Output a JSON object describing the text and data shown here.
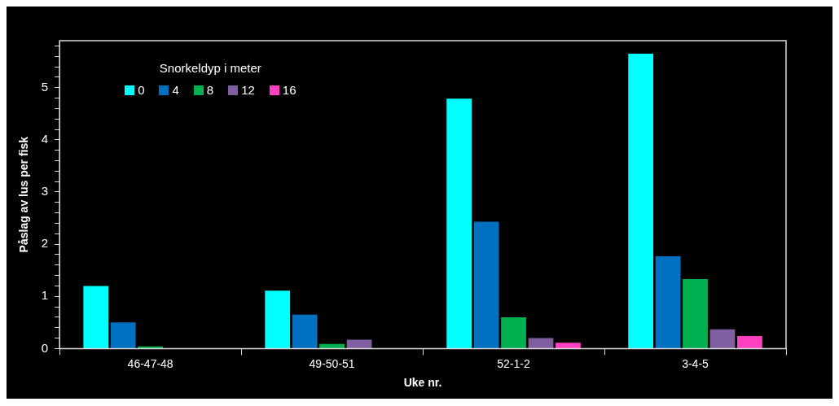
{
  "chart_data": {
    "type": "bar",
    "xlabel": "Uke nr.",
    "ylabel": "Påslag av lus per fisk",
    "legend_title": "Snorkeldyp i meter",
    "legend": "top left",
    "categories": [
      "46-47-48",
      "49-50-51",
      "52-1-2",
      "3-4-5"
    ],
    "series": [
      {
        "name": "0",
        "color": "#00ffff",
        "values": [
          1.2,
          1.11,
          4.79,
          5.65
        ]
      },
      {
        "name": "4",
        "color": "#0070c0",
        "values": [
          0.5,
          0.65,
          2.43,
          1.77
        ]
      },
      {
        "name": "8",
        "color": "#00b050",
        "values": [
          0.04,
          0.09,
          0.6,
          1.33
        ]
      },
      {
        "name": "12",
        "color": "#7f5fa0",
        "values": [
          0,
          0.17,
          0.2,
          0.37
        ]
      },
      {
        "name": "16",
        "color": "#ff40c0",
        "values": [
          0,
          0,
          0.11,
          0.24
        ]
      }
    ],
    "ylim": [
      0,
      5.9
    ],
    "yticks": [
      0,
      {
        "value": 0.2,
        "label": null
      },
      {
        "value": 0.4,
        "label": null
      },
      {
        "value": 0.6,
        "label": null
      },
      {
        "value": 0.8,
        "label": null
      },
      1,
      {
        "value": 1.2,
        "label": null
      },
      {
        "value": 1.4,
        "label": null
      },
      {
        "value": 1.6,
        "label": null
      },
      {
        "value": 1.8,
        "label": null
      },
      2,
      {
        "value": 2.2,
        "label": null
      },
      {
        "value": 2.4,
        "label": null
      },
      {
        "value": 2.6,
        "label": null
      },
      {
        "value": 2.8,
        "label": null
      },
      3,
      {
        "value": 3.2,
        "label": null
      },
      {
        "value": 3.4,
        "label": null
      },
      {
        "value": 3.6,
        "label": null
      },
      {
        "value": 3.8,
        "label": null
      },
      4,
      {
        "value": 4.2,
        "label": null
      },
      {
        "value": 4.4,
        "label": null
      },
      {
        "value": 4.6,
        "label": null
      },
      {
        "value": 4.8,
        "label": null
      },
      5,
      {
        "value": 5.2,
        "label": null
      },
      {
        "value": 5.4,
        "label": null
      },
      {
        "value": 5.6,
        "label": null
      },
      {
        "value": 5.8,
        "label": null
      }
    ],
    "grid": false
  }
}
